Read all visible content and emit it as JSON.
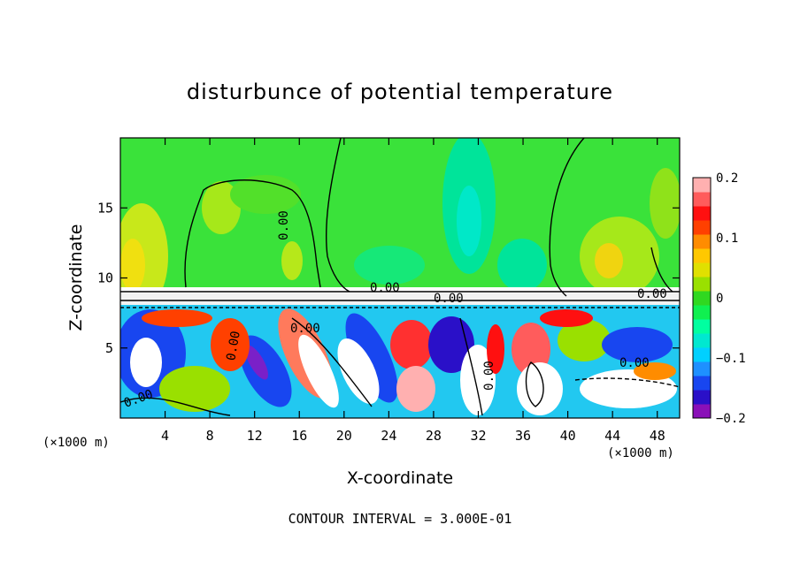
{
  "chart_data": {
    "type": "heatmap",
    "title": "disturbunce of potential temperature",
    "xlabel": "X-coordinate",
    "ylabel": "Z-coordinate",
    "x_unit_left": "(×1000 m)",
    "x_unit_right": "(×1000 m)",
    "footer": "CONTOUR INTERVAL = 3.000E-01",
    "x_ticks": [
      4,
      8,
      12,
      16,
      20,
      24,
      28,
      32,
      36,
      40,
      44,
      48
    ],
    "y_ticks": [
      5,
      10,
      15
    ],
    "xlim": [
      0,
      50
    ],
    "ylim": [
      0,
      20
    ],
    "colorbar": {
      "ticks": [
        "0.2",
        "0.1",
        "0",
        "−0.1",
        "−0.2"
      ],
      "tick_values": [
        0.2,
        0.1,
        0,
        -0.1,
        -0.2
      ],
      "range": [
        -0.2,
        0.2
      ],
      "colors": [
        "#8a10b8",
        "#2a10c8",
        "#1846f0",
        "#1e90ff",
        "#00d0ff",
        "#00e8d0",
        "#00ffa0",
        "#10f050",
        "#30d820",
        "#9ae000",
        "#e0e000",
        "#ffc800",
        "#ff8c00",
        "#ff4000",
        "#ff1010",
        "#ff5c5c",
        "#ffb0b0"
      ]
    },
    "contour_labels": [
      "0.00",
      "0.00",
      "0.00",
      "0.00",
      "0.00",
      "0.00",
      "0.00",
      "0.00",
      "0.00"
    ],
    "grid": false,
    "legend": "colorbar right"
  }
}
